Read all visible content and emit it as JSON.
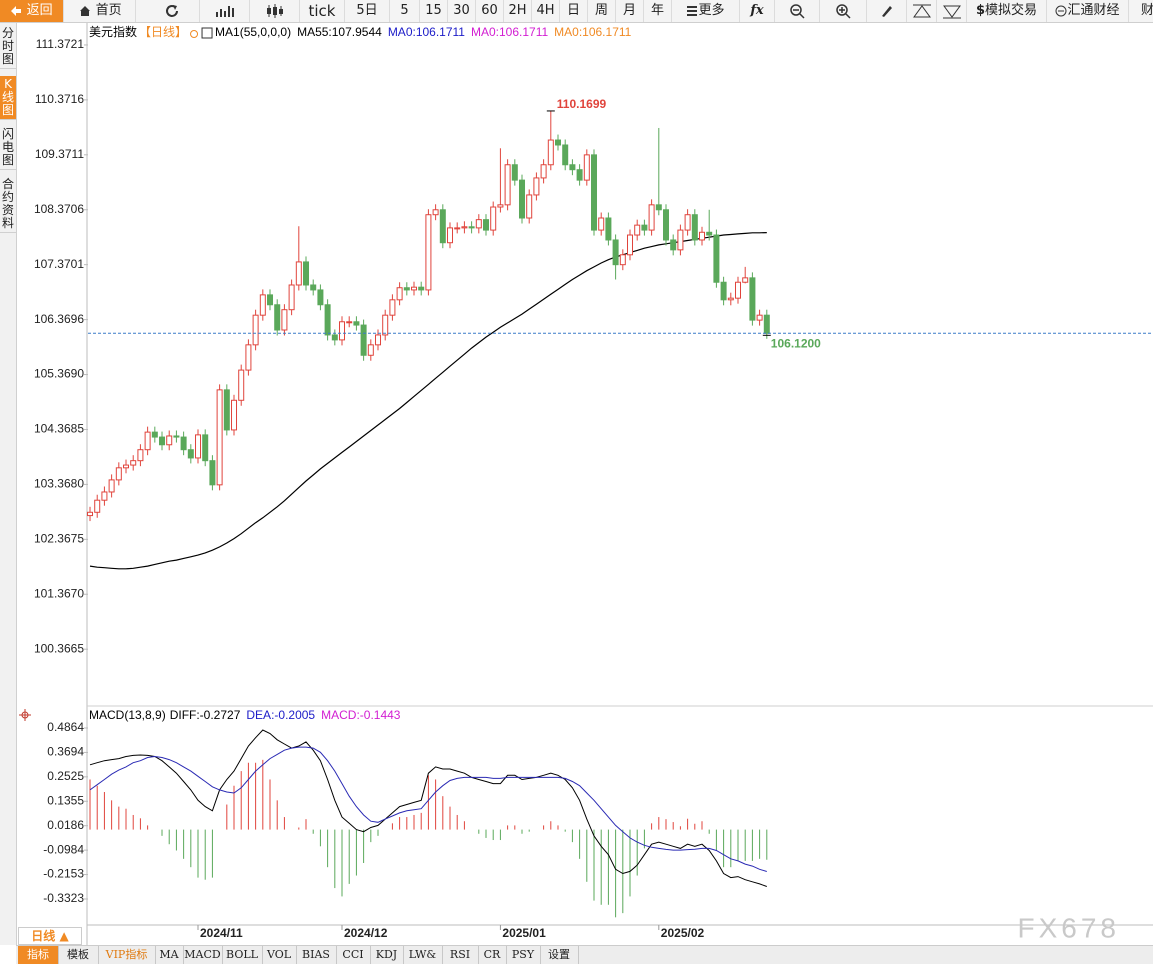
{
  "toolbar": {
    "back": "返回",
    "home": "首页",
    "tick": "tick",
    "periods": [
      "5日",
      "5",
      "15",
      "30",
      "60",
      "2H",
      "4H",
      "日",
      "周",
      "月",
      "年"
    ],
    "more": "更多",
    "fx": "fx",
    "sim_icon": "$",
    "sim_trade": "模拟交易",
    "huitong": "汇通财经",
    "cut": "财"
  },
  "side_tabs": [
    "分时图",
    "K线图",
    "闪电图",
    "合约资料"
  ],
  "chart_data": [
    {
      "type": "candlestick",
      "title": "美元指数",
      "period_tag": "【日线】",
      "legend": [
        {
          "text": "MA1(55,0,0,0)",
          "color": "#000000"
        },
        {
          "text": "MA55:107.9544",
          "color": "#000000"
        },
        {
          "text": "MA0:106.1711",
          "color": "#1c1cc8"
        },
        {
          "text": "MA0:106.1711",
          "color": "#d21ed2"
        },
        {
          "text": "MA0:106.1711",
          "color": "#f08a24"
        }
      ],
      "up_color": "#e0443c",
      "down_color": "#5aa85a",
      "open": [
        102.8,
        102.86,
        103.08,
        103.23,
        103.45,
        103.67,
        103.72,
        103.8,
        104.0,
        104.32,
        104.23,
        104.09,
        104.25,
        104.23,
        104.0,
        103.85,
        104.27,
        103.8,
        103.36,
        105.09,
        104.36,
        104.9,
        105.45,
        105.91,
        106.45,
        106.82,
        106.64,
        106.18,
        106.55,
        107.0,
        107.42,
        107.0,
        106.91,
        106.64,
        106.09,
        106.0,
        106.33,
        106.33,
        106.27,
        105.72,
        105.91,
        106.09,
        106.45,
        106.73,
        106.95,
        106.91,
        106.96,
        106.91,
        108.28,
        108.37,
        107.77,
        108.04,
        108.04,
        108.06,
        108.04,
        108.19,
        108.0,
        108.42,
        108.46,
        109.19,
        108.91,
        108.22,
        108.64,
        108.95,
        109.19,
        109.64,
        109.55,
        109.19,
        109.1,
        108.91,
        109.37,
        108.0,
        108.22,
        107.82,
        107.37,
        107.55,
        107.91,
        108.09,
        108.0,
        108.46,
        108.37,
        107.82,
        107.64,
        108.0,
        108.28,
        107.82,
        107.96,
        107.91,
        107.05,
        106.73,
        106.76,
        107.05,
        107.13,
        106.36,
        106.45
      ],
      "high": [
        102.96,
        103.18,
        103.33,
        103.55,
        103.77,
        103.82,
        103.9,
        104.1,
        104.42,
        104.42,
        104.33,
        104.35,
        104.35,
        104.33,
        104.1,
        104.37,
        104.37,
        103.9,
        105.19,
        105.19,
        105.0,
        105.55,
        106.01,
        106.55,
        106.92,
        106.92,
        106.74,
        106.65,
        107.1,
        108.07,
        107.52,
        107.1,
        107.01,
        106.74,
        106.19,
        106.43,
        106.43,
        106.43,
        106.37,
        106.01,
        106.19,
        106.55,
        106.83,
        107.05,
        107.05,
        107.06,
        107.06,
        108.38,
        108.47,
        108.47,
        108.14,
        108.14,
        108.16,
        108.16,
        108.29,
        108.29,
        108.52,
        109.49,
        109.29,
        109.29,
        109.01,
        108.74,
        109.05,
        109.29,
        110.1699,
        109.74,
        109.65,
        109.29,
        109.2,
        109.47,
        109.47,
        108.32,
        108.32,
        107.92,
        107.65,
        108.01,
        108.19,
        108.19,
        108.56,
        109.86,
        108.47,
        107.92,
        108.1,
        108.38,
        108.38,
        108.06,
        108.37,
        108.01,
        107.15,
        106.86,
        107.15,
        107.33,
        107.23,
        106.55,
        106.55
      ],
      "low": [
        102.7,
        102.76,
        102.98,
        103.13,
        103.35,
        103.57,
        103.62,
        103.7,
        103.9,
        104.13,
        103.99,
        103.99,
        104.13,
        103.9,
        103.75,
        103.75,
        103.7,
        103.26,
        103.26,
        104.26,
        104.26,
        104.8,
        105.35,
        105.81,
        106.35,
        106.54,
        106.08,
        106.08,
        106.45,
        106.9,
        106.9,
        106.81,
        106.54,
        105.99,
        105.9,
        105.9,
        106.23,
        106.17,
        105.62,
        105.62,
        105.81,
        105.99,
        106.35,
        106.63,
        106.81,
        106.81,
        106.81,
        106.81,
        108.18,
        107.67,
        107.67,
        107.94,
        107.94,
        107.94,
        107.94,
        107.9,
        107.9,
        108.32,
        108.36,
        108.81,
        108.12,
        108.12,
        108.54,
        108.85,
        109.09,
        109.45,
        109.09,
        109.0,
        108.81,
        108.81,
        107.9,
        107.9,
        107.72,
        107.1,
        107.27,
        107.45,
        107.81,
        107.9,
        107.9,
        108.27,
        107.72,
        107.54,
        107.54,
        107.9,
        107.72,
        107.72,
        107.81,
        106.95,
        106.63,
        106.63,
        106.66,
        107.03,
        106.26,
        106.26,
        106.02
      ],
      "close": [
        102.86,
        103.08,
        103.23,
        103.45,
        103.67,
        103.72,
        103.8,
        104.0,
        104.32,
        104.23,
        104.09,
        104.25,
        104.23,
        104.0,
        103.85,
        104.27,
        103.8,
        103.36,
        105.09,
        104.36,
        104.9,
        105.45,
        105.91,
        106.45,
        106.82,
        106.64,
        106.18,
        106.55,
        107.0,
        107.42,
        107.0,
        106.91,
        106.64,
        106.09,
        106.0,
        106.33,
        106.33,
        106.27,
        105.72,
        105.91,
        106.09,
        106.45,
        106.73,
        106.95,
        106.91,
        106.96,
        106.91,
        108.28,
        108.37,
        107.77,
        108.04,
        108.04,
        108.06,
        108.04,
        108.19,
        108.0,
        108.42,
        108.46,
        109.19,
        108.91,
        108.22,
        108.64,
        108.95,
        109.19,
        109.64,
        109.55,
        109.19,
        109.1,
        108.91,
        109.37,
        108.0,
        108.22,
        107.82,
        107.37,
        107.55,
        107.91,
        108.09,
        108.0,
        108.46,
        108.37,
        107.82,
        107.64,
        108.0,
        108.28,
        107.82,
        107.96,
        107.91,
        107.05,
        106.73,
        106.76,
        107.05,
        107.13,
        106.36,
        106.45,
        106.12
      ],
      "ma": {
        "color": "#000000",
        "values": [
          101.88,
          101.86,
          101.85,
          101.84,
          101.83,
          101.83,
          101.84,
          101.86,
          101.88,
          101.91,
          101.94,
          101.97,
          101.99,
          102.02,
          102.05,
          102.08,
          102.12,
          102.17,
          102.23,
          102.3,
          102.38,
          102.47,
          102.57,
          102.67,
          102.76,
          102.86,
          102.96,
          103.07,
          103.19,
          103.31,
          103.43,
          103.54,
          103.65,
          103.75,
          103.85,
          103.95,
          104.05,
          104.15,
          104.25,
          104.35,
          104.45,
          104.55,
          104.65,
          104.75,
          104.86,
          104.97,
          105.08,
          105.19,
          105.3,
          105.41,
          105.52,
          105.63,
          105.74,
          105.85,
          105.95,
          106.05,
          106.14,
          106.23,
          106.31,
          106.39,
          106.47,
          106.56,
          106.65,
          106.74,
          106.83,
          106.92,
          107.01,
          107.1,
          107.18,
          107.26,
          107.33,
          107.4,
          107.46,
          107.51,
          107.55,
          107.59,
          107.63,
          107.67,
          107.7,
          107.73,
          107.75,
          107.77,
          107.79,
          107.81,
          107.83,
          107.85,
          107.87,
          107.89,
          107.91,
          107.92,
          107.93,
          107.94,
          107.95,
          107.95,
          107.9544
        ]
      },
      "last_label": "106.1200",
      "last_line_color": "#3a7bc8",
      "ylim": [
        99.35,
        111.79
      ],
      "yticks": [
        111.3721,
        110.3716,
        109.3711,
        108.3706,
        107.3701,
        106.3696,
        {
          "value": 105.369,
          "label": "105.3690"
        },
        104.3685,
        {
          "value": 103.368,
          "label": "103.3680"
        },
        102.3675,
        {
          "value": 101.367,
          "label": "101.3670"
        },
        100.3665
      ],
      "xlim": [
        -0.28,
        147.64
      ],
      "xticks": [
        {
          "value": 15,
          "label": "2024/11"
        },
        {
          "value": 35,
          "label": "2024/12"
        },
        {
          "value": 57,
          "label": "2025/01"
        },
        {
          "value": 79,
          "label": "2025/02"
        }
      ]
    },
    {
      "type": "macd",
      "title": "MACD(13,8,9)",
      "legend": [
        {
          "text": "DIFF:-0.2727",
          "color": "#000000"
        },
        {
          "text": "DEA:-0.2005",
          "color": "#1c1cc8"
        },
        {
          "text": "MACD:-0.1443",
          "color": "#d21ed2"
        }
      ],
      "series": [
        {
          "color": "#000000",
          "values": [
            0.31,
            0.32,
            0.33,
            0.335,
            0.34,
            0.35,
            0.355,
            0.357,
            0.355,
            0.35,
            0.33,
            0.3,
            0.27,
            0.23,
            0.19,
            0.14,
            0.11,
            0.09,
            0.19,
            0.24,
            0.28,
            0.34,
            0.4,
            0.44,
            0.477,
            0.46,
            0.43,
            0.41,
            0.39,
            0.4,
            0.42,
            0.38,
            0.33,
            0.24,
            0.14,
            0.06,
            0.03,
            0.0,
            -0.01,
            0.01,
            0.02,
            0.05,
            0.08,
            0.11,
            0.12,
            0.13,
            0.14,
            0.27,
            0.3,
            0.29,
            0.29,
            0.28,
            0.27,
            0.25,
            0.24,
            0.23,
            0.22,
            0.22,
            0.26,
            0.26,
            0.24,
            0.245,
            0.25,
            0.26,
            0.27,
            0.26,
            0.24,
            0.2,
            0.14,
            0.05,
            -0.03,
            -0.08,
            -0.12,
            -0.19,
            -0.21,
            -0.2,
            -0.17,
            -0.12,
            -0.07,
            -0.06,
            -0.07,
            -0.08,
            -0.09,
            -0.07,
            -0.08,
            -0.07,
            -0.1,
            -0.15,
            -0.21,
            -0.23,
            -0.225,
            -0.24,
            -0.25,
            -0.26,
            -0.2727
          ]
        },
        {
          "color": "#2a2ab4",
          "values": [
            0.19,
            0.215,
            0.24,
            0.265,
            0.285,
            0.3,
            0.32,
            0.33,
            0.345,
            0.35,
            0.345,
            0.335,
            0.32,
            0.3,
            0.28,
            0.255,
            0.23,
            0.205,
            0.19,
            0.18,
            0.175,
            0.2,
            0.24,
            0.28,
            0.31,
            0.34,
            0.36,
            0.38,
            0.39,
            0.395,
            0.395,
            0.39,
            0.37,
            0.33,
            0.28,
            0.22,
            0.16,
            0.11,
            0.07,
            0.04,
            0.035,
            0.05,
            0.065,
            0.08,
            0.09,
            0.095,
            0.1,
            0.14,
            0.18,
            0.21,
            0.235,
            0.245,
            0.25,
            0.25,
            0.25,
            0.25,
            0.245,
            0.245,
            0.25,
            0.25,
            0.25,
            0.25,
            0.25,
            0.25,
            0.25,
            0.25,
            0.245,
            0.23,
            0.21,
            0.175,
            0.14,
            0.1,
            0.06,
            0.02,
            -0.01,
            -0.04,
            -0.06,
            -0.075,
            -0.085,
            -0.09,
            -0.095,
            -0.098,
            -0.098,
            -0.096,
            -0.094,
            -0.09,
            -0.09,
            -0.1,
            -0.12,
            -0.14,
            -0.15,
            -0.165,
            -0.175,
            -0.19,
            -0.2005
          ]
        }
      ],
      "histogram": {
        "up_color": "#e0443c",
        "down_color": "#5aa85a",
        "values": [
          0.24,
          0.21,
          0.18,
          0.14,
          0.11,
          0.1,
          0.07,
          0.054,
          0.02,
          0,
          -0.03,
          -0.07,
          -0.1,
          -0.14,
          -0.18,
          -0.23,
          -0.24,
          -0.23,
          0,
          0.12,
          0.21,
          0.28,
          0.32,
          0.32,
          0.334,
          0.24,
          0.14,
          0.06,
          0,
          0.01,
          0.05,
          -0.02,
          -0.08,
          -0.18,
          -0.28,
          -0.32,
          -0.26,
          -0.22,
          -0.16,
          -0.06,
          -0.03,
          0,
          0.03,
          0.06,
          0.06,
          0.07,
          0.08,
          0.26,
          0.24,
          0.16,
          0.11,
          0.07,
          0.04,
          0,
          -0.02,
          -0.04,
          -0.05,
          -0.05,
          0.02,
          0.02,
          -0.02,
          -0.01,
          0,
          0.02,
          0.04,
          0.02,
          -0.01,
          -0.06,
          -0.14,
          -0.25,
          -0.34,
          -0.36,
          -0.36,
          -0.42,
          -0.4,
          -0.32,
          -0.22,
          -0.09,
          0.03,
          0.06,
          0.05,
          0.036,
          0.016,
          0.052,
          0.028,
          0.04,
          -0.02,
          -0.1,
          -0.18,
          -0.18,
          -0.15,
          -0.15,
          -0.15,
          -0.14,
          -0.1443
        ]
      },
      "ylim": [
        -0.4568,
        0.5917
      ],
      "yticks": [
        0.4864,
        0.3694,
        0.2525,
        0.1355,
        0.0186,
        -0.0984,
        -0.2153,
        -0.3323
      ]
    }
  ],
  "period_button": "日线 ▲",
  "indicator_tabs": [
    "指标",
    "模板",
    "VIP指标",
    "MA",
    "MACD",
    "BOLL",
    "VOL",
    "BIAS",
    "CCI",
    "KDJ",
    "LW&",
    "RSI",
    "CR",
    "PSY",
    "设置"
  ],
  "watermark": "FX678"
}
